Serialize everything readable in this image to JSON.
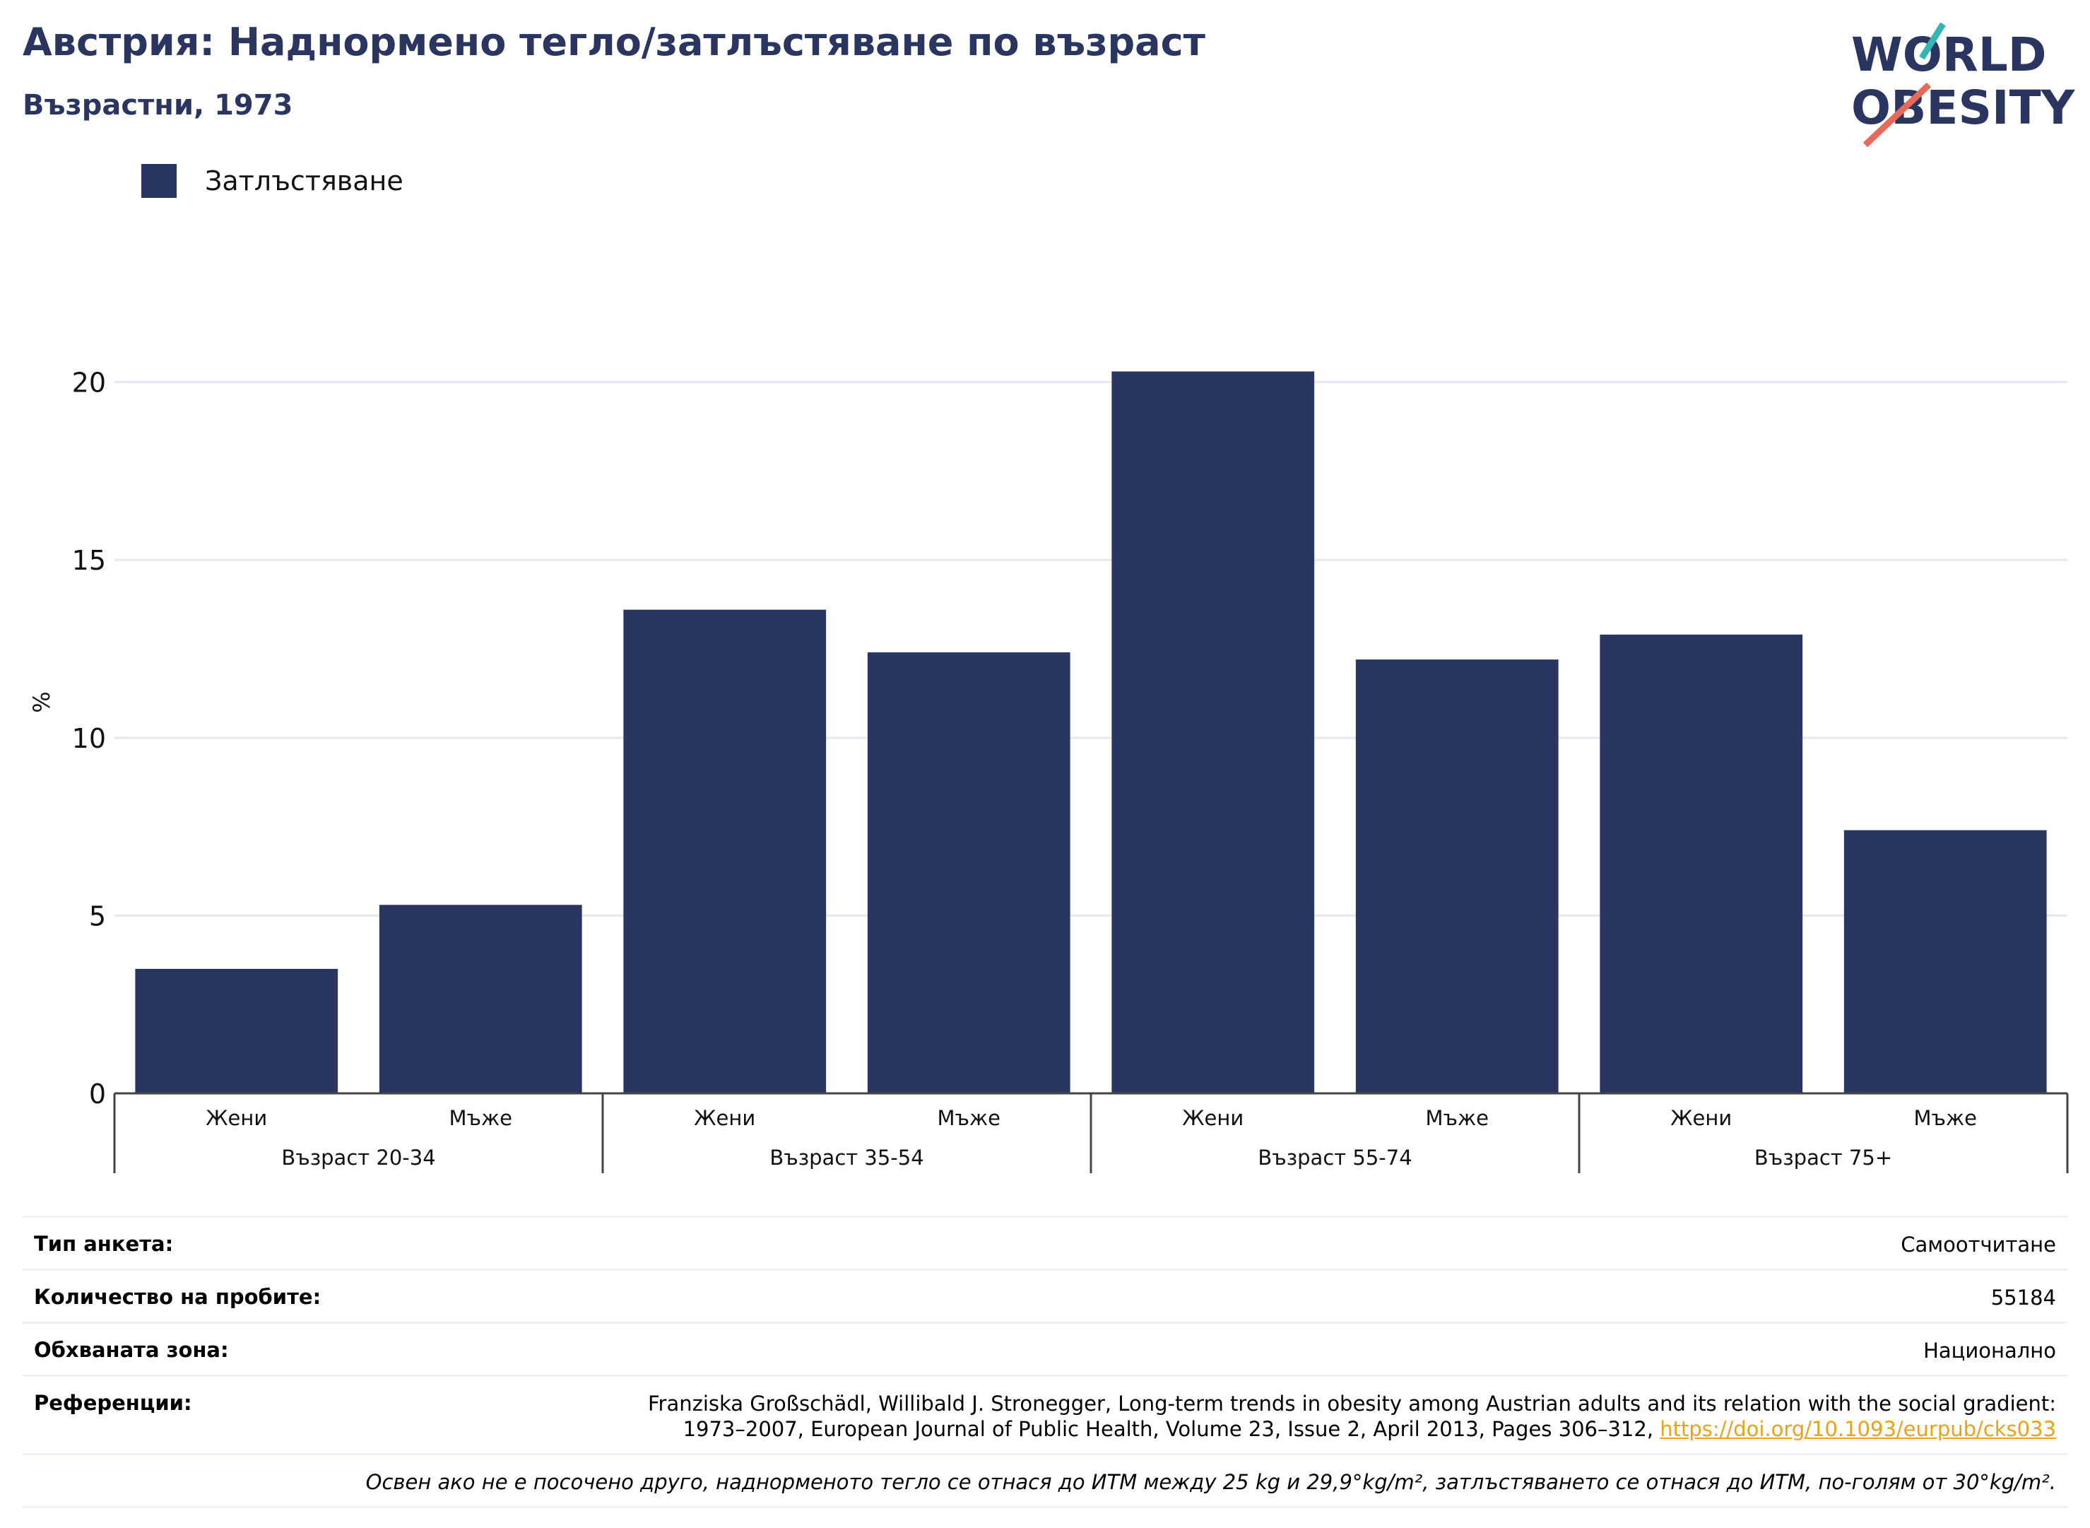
{
  "header": {
    "title": "Австрия: Наднормено тегло/затлъстяване по възраст",
    "subtitle": "Възрастни, 1973"
  },
  "logo": {
    "line1": "WORLD",
    "line2": "OBESITY"
  },
  "legend": {
    "label": "Затлъстяване",
    "color": "#2a3662"
  },
  "chart_data": {
    "type": "bar",
    "ylabel": "%",
    "ylim": [
      0,
      22
    ],
    "yticks": [
      0,
      5,
      10,
      15,
      20
    ],
    "grid": true,
    "legend_position": "top-left",
    "groups": [
      "Възраст 20-34",
      "Възраст 35-54",
      "Възраст 55-74",
      "Възраст 75+"
    ],
    "categories": [
      "Жени",
      "Мъже",
      "Жени",
      "Мъже",
      "Жени",
      "Мъже",
      "Жени",
      "Мъже"
    ],
    "series": [
      {
        "name": "Затлъстяване",
        "color": "#2a3662",
        "values": [
          3.5,
          5.3,
          13.6,
          12.4,
          20.3,
          12.2,
          12.9,
          7.4
        ]
      }
    ]
  },
  "info": {
    "survey_type": {
      "label": "Тип анкета:",
      "value": "Самоотчитане"
    },
    "sample_size": {
      "label": "Количество на пробите:",
      "value": "55184"
    },
    "coverage": {
      "label": "Обхваната зона:",
      "value": "Национално"
    },
    "references": {
      "label": "Референции:",
      "line1": "Franziska Großschädl, Willibald J. Stronegger, Long-term trends in obesity among Austrian adults and its relation with the social gradient:",
      "line2": "1973–2007, European Journal of Public Health, Volume 23, Issue 2, April 2013, Pages 306–312,",
      "link": "https://doi.org/10.1093/eurpub/cks033"
    },
    "note": "Освен ако не е посочено друго, наднорменото тегло се отнася до ИТМ между 25 kg и 29,9°kg/m², затлъстяването се отнася до ИТМ, по-голям от 30°kg/m²."
  },
  "colors": {
    "title": "#2a3560",
    "bar": "#2a3662",
    "link": "#e8a317",
    "grid": "#e6e8ef"
  }
}
